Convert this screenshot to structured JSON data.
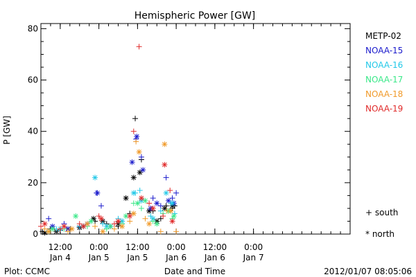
{
  "chart_data": {
    "type": "scatter",
    "title": "Hemispheric Power [GW]",
    "xlabel": "Date and Time",
    "ylabel": "P [GW]",
    "ylim": [
      0,
      82
    ],
    "xlim": [
      0,
      4.0
    ],
    "x_unit_note": "days since 2012-01-04 06:00 UT",
    "y_ticks": [
      0,
      20,
      40,
      60,
      80
    ],
    "x_ticks": [
      {
        "x": 0.25,
        "time": "12:00",
        "date": "Jan 4"
      },
      {
        "x": 0.75,
        "time": "0:00",
        "date": "Jan 5"
      },
      {
        "x": 1.25,
        "time": "12:00",
        "date": "Jan 5"
      },
      {
        "x": 1.75,
        "time": "0:00",
        "date": "Jan 6"
      },
      {
        "x": 2.25,
        "time": "12:00",
        "date": "Jan 6"
      },
      {
        "x": 2.75,
        "time": "0:00",
        "date": "Jan 7"
      }
    ],
    "series": [
      {
        "name": "METP-02",
        "color": "#000000",
        "south": [
          [
            0.02,
            1
          ],
          [
            0.12,
            2
          ],
          [
            0.25,
            1.5
          ],
          [
            0.38,
            2
          ],
          [
            0.55,
            3
          ],
          [
            0.7,
            5
          ],
          [
            0.85,
            4
          ],
          [
            1.0,
            3
          ],
          [
            1.15,
            8
          ],
          [
            1.22,
            45
          ],
          [
            1.3,
            29
          ],
          [
            1.45,
            9
          ],
          [
            1.55,
            6
          ],
          [
            1.62,
            11
          ],
          [
            1.7,
            10
          ],
          [
            1.73,
            11
          ]
        ],
        "north": [
          [
            0.05,
            0.5
          ],
          [
            0.2,
            1
          ],
          [
            0.35,
            2
          ],
          [
            0.5,
            2.5
          ],
          [
            0.68,
            6
          ],
          [
            0.8,
            5
          ],
          [
            1.0,
            4
          ],
          [
            1.1,
            14
          ],
          [
            1.2,
            22
          ],
          [
            1.28,
            24
          ],
          [
            1.4,
            9
          ],
          [
            1.5,
            5
          ],
          [
            1.6,
            10
          ],
          [
            1.7,
            11
          ]
        ]
      },
      {
        "name": "NOAA-15",
        "color": "#1a1acc",
        "south": [
          [
            0.1,
            6
          ],
          [
            0.3,
            4
          ],
          [
            0.5,
            3
          ],
          [
            0.72,
            16
          ],
          [
            0.78,
            11
          ],
          [
            1.05,
            5
          ],
          [
            1.23,
            37
          ],
          [
            1.3,
            30
          ],
          [
            1.45,
            14
          ],
          [
            1.55,
            11
          ],
          [
            1.62,
            22
          ],
          [
            1.7,
            14
          ],
          [
            1.75,
            16
          ]
        ],
        "north": [
          [
            0.15,
            3
          ],
          [
            0.35,
            2
          ],
          [
            0.6,
            4
          ],
          [
            0.73,
            16
          ],
          [
            0.9,
            3
          ],
          [
            1.18,
            28
          ],
          [
            1.24,
            38
          ],
          [
            1.32,
            25
          ],
          [
            1.42,
            10
          ],
          [
            1.5,
            12
          ],
          [
            1.65,
            13
          ],
          [
            1.72,
            12
          ]
        ]
      },
      {
        "name": "NOAA-16",
        "color": "#22c8e8",
        "south": [
          [
            0.2,
            2
          ],
          [
            0.5,
            3
          ],
          [
            0.8,
            4
          ],
          [
            1.0,
            6
          ],
          [
            1.22,
            16
          ],
          [
            1.28,
            17
          ],
          [
            1.42,
            7
          ],
          [
            1.55,
            9
          ],
          [
            1.68,
            12
          ],
          [
            1.73,
            8
          ]
        ],
        "north": [
          [
            0.25,
            2
          ],
          [
            0.55,
            3
          ],
          [
            0.7,
            22
          ],
          [
            0.85,
            3
          ],
          [
            1.05,
            5
          ],
          [
            1.2,
            16
          ],
          [
            1.3,
            13
          ],
          [
            1.45,
            6
          ],
          [
            1.62,
            16
          ],
          [
            1.7,
            12
          ]
        ]
      },
      {
        "name": "NOAA-17",
        "color": "#3ae888",
        "south": [
          [
            0.1,
            1
          ],
          [
            0.3,
            2
          ],
          [
            0.6,
            3
          ],
          [
            0.85,
            2
          ],
          [
            1.05,
            4
          ],
          [
            1.2,
            12
          ],
          [
            1.3,
            10
          ],
          [
            1.45,
            5
          ],
          [
            1.58,
            8
          ],
          [
            1.7,
            6
          ]
        ],
        "north": [
          [
            0.15,
            2
          ],
          [
            0.45,
            7
          ],
          [
            0.65,
            5
          ],
          [
            0.9,
            3
          ],
          [
            1.1,
            7
          ],
          [
            1.25,
            12
          ],
          [
            1.35,
            13
          ],
          [
            1.5,
            4
          ],
          [
            1.65,
            9
          ],
          [
            1.72,
            7
          ]
        ]
      },
      {
        "name": "NOAA-18",
        "color": "#f09a2a",
        "south": [
          [
            0.05,
            2
          ],
          [
            0.35,
            1
          ],
          [
            0.7,
            3
          ],
          [
            0.95,
            2
          ],
          [
            1.15,
            5
          ],
          [
            1.23,
            36
          ],
          [
            1.35,
            6
          ],
          [
            1.55,
            1
          ],
          [
            1.63,
            9
          ],
          [
            1.75,
            1
          ]
        ],
        "north": [
          [
            0.1,
            1
          ],
          [
            0.4,
            2
          ],
          [
            0.6,
            4
          ],
          [
            0.8,
            1
          ],
          [
            1.05,
            3
          ],
          [
            1.2,
            8
          ],
          [
            1.27,
            32
          ],
          [
            1.4,
            4
          ],
          [
            1.6,
            35
          ],
          [
            1.68,
            9
          ]
        ]
      },
      {
        "name": "NOAA-19",
        "color": "#e02a2a",
        "south": [
          [
            0.0,
            3
          ],
          [
            0.25,
            2
          ],
          [
            0.5,
            4
          ],
          [
            0.75,
            7
          ],
          [
            0.95,
            4
          ],
          [
            1.2,
            40
          ],
          [
            1.27,
            73
          ],
          [
            1.4,
            12
          ],
          [
            1.58,
            7
          ],
          [
            1.67,
            17
          ]
        ],
        "north": [
          [
            0.05,
            4
          ],
          [
            0.3,
            3
          ],
          [
            0.55,
            3
          ],
          [
            0.78,
            6
          ],
          [
            1.0,
            5
          ],
          [
            1.15,
            7
          ],
          [
            1.3,
            14
          ],
          [
            1.45,
            10
          ],
          [
            1.6,
            27
          ],
          [
            1.7,
            5
          ]
        ]
      }
    ]
  },
  "legend": {
    "symbols": [
      {
        "glyph": "+",
        "label": "south"
      },
      {
        "glyph": "*",
        "label": "north"
      }
    ]
  },
  "footer": {
    "left": "Plot: CCMC",
    "right": "2012/01/07 08:05:06"
  }
}
